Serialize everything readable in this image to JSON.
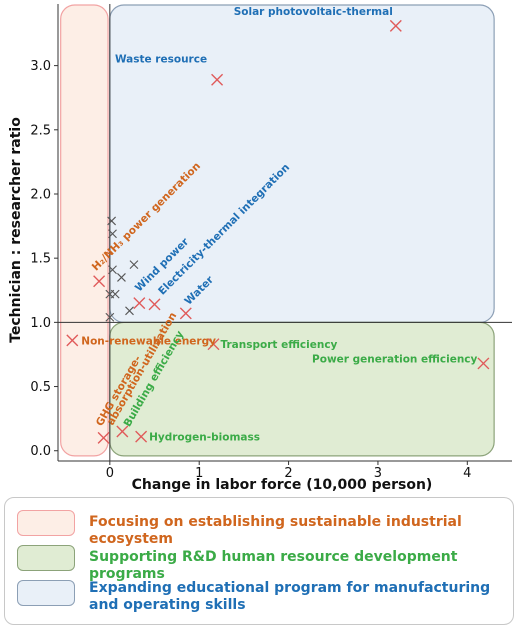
{
  "chart_data": {
    "type": "scatter",
    "title": "",
    "xlabel": "Change in labor force (10,000 person)",
    "ylabel": "Technician : researcher ratio",
    "xlim": [
      -0.58,
      4.5
    ],
    "ylim": [
      -0.08,
      3.48
    ],
    "xticks": [
      0,
      1,
      2,
      3,
      4
    ],
    "yticks": [
      0.0,
      0.5,
      1.0,
      1.5,
      2.0,
      2.5,
      3.0
    ],
    "xtick_labels": [
      "0",
      "1",
      "2",
      "3",
      "4"
    ],
    "ytick_labels": [
      "0.0",
      "0.5",
      "1.0",
      "1.5",
      "2.0",
      "2.5",
      "3.0"
    ],
    "grid": false,
    "reference_lines": {
      "x": 0,
      "y": 1.0
    },
    "regions": [
      {
        "name": "orange",
        "x": [
          -0.55,
          -0.02
        ],
        "y": [
          -0.04,
          3.48
        ],
        "fill": "#fdeee6",
        "stroke": "#f2a3a3"
      },
      {
        "name": "blue",
        "x": [
          0.0,
          4.3
        ],
        "y": [
          1.0,
          3.48
        ],
        "fill": "#e9f0f8",
        "stroke": "#8c9fb5"
      },
      {
        "name": "green",
        "x": [
          0.0,
          4.3
        ],
        "y": [
          -0.04,
          1.0
        ],
        "fill": "#e0ecd3",
        "stroke": "#8ca37a"
      }
    ],
    "labeled_points": [
      {
        "label": "Solar photovoltaic-thermal",
        "x": 3.2,
        "y": 3.31,
        "color": "#1f6fb5",
        "rotate": 0,
        "dx": -3,
        "dy": -11,
        "anchor": "end"
      },
      {
        "label": "Waste resource",
        "x": 1.2,
        "y": 2.89,
        "color": "#1f6fb5",
        "rotate": 0,
        "dx": -10,
        "dy": -17,
        "anchor": "end"
      },
      {
        "label": "Wind power",
        "x": 0.33,
        "y": 1.15,
        "color": "#1f6fb5",
        "rotate": -45,
        "dx": 0,
        "dy": -11,
        "anchor": "start"
      },
      {
        "label": "Electricity-thermal integration",
        "x": 0.5,
        "y": 1.14,
        "color": "#1f6fb5",
        "rotate": -45,
        "dx": 8,
        "dy": -9,
        "anchor": "start"
      },
      {
        "label": "Water",
        "x": 0.85,
        "y": 1.07,
        "color": "#1f6fb5",
        "rotate": -45,
        "dx": 3,
        "dy": -8,
        "anchor": "start"
      },
      {
        "label": "Non-renewable energy",
        "x": -0.42,
        "y": 0.86,
        "color": "#d0661e",
        "rotate": 0,
        "dx": 9,
        "dy": 4,
        "anchor": "start"
      },
      {
        "label": "Transport efficiency",
        "x": 1.16,
        "y": 0.83,
        "color": "#3bab47",
        "rotate": 0,
        "dx": 7,
        "dy": 4,
        "anchor": "start"
      },
      {
        "label": "Power generation efficiency",
        "x": 4.18,
        "y": 0.68,
        "color": "#3bab47",
        "rotate": 0,
        "dx": -6,
        "dy": -1,
        "anchor": "end"
      },
      {
        "label": "Building efficiency",
        "x": 0.14,
        "y": 0.15,
        "color": "#3bab47",
        "rotate": -60,
        "dx": 7,
        "dy": -4,
        "anchor": "start"
      },
      {
        "label": "Hydrogen-biomass",
        "x": 0.35,
        "y": 0.11,
        "color": "#3bab47",
        "rotate": 0,
        "dx": 8,
        "dy": 4,
        "anchor": "start"
      },
      {
        "label": "H₂/NH₃ power generation",
        "x": -0.12,
        "y": 1.32,
        "color": "#d0661e",
        "rotate": -45,
        "dx": -3,
        "dy": -10,
        "anchor": "start"
      },
      {
        "label": "GHG storage-",
        "x": -0.07,
        "y": 0.1,
        "color": "#d0661e",
        "rotate": -60,
        "dx": -2,
        "dy": -11,
        "anchor": "start"
      },
      {
        "label": "absorption-utilization",
        "x": -0.07,
        "y": 0.1,
        "color": "#d0661e",
        "rotate": -60,
        "dx": 9,
        "dy": -12,
        "anchor": "start"
      }
    ],
    "red_points": [
      {
        "x": 3.2,
        "y": 3.31
      },
      {
        "x": 1.2,
        "y": 2.89
      },
      {
        "x": 0.33,
        "y": 1.15
      },
      {
        "x": 0.5,
        "y": 1.14
      },
      {
        "x": 0.85,
        "y": 1.07
      },
      {
        "x": -0.42,
        "y": 0.86
      },
      {
        "x": 1.16,
        "y": 0.83
      },
      {
        "x": 4.18,
        "y": 0.68
      },
      {
        "x": 0.14,
        "y": 0.15
      },
      {
        "x": 0.35,
        "y": 0.11
      },
      {
        "x": -0.12,
        "y": 1.32
      },
      {
        "x": -0.07,
        "y": 0.1
      }
    ],
    "gray_points": [
      {
        "x": 0.02,
        "y": 1.79
      },
      {
        "x": 0.03,
        "y": 1.69
      },
      {
        "x": 0.27,
        "y": 1.45
      },
      {
        "x": 0.03,
        "y": 1.41
      },
      {
        "x": 0.13,
        "y": 1.35
      },
      {
        "x": 0.0,
        "y": 1.22
      },
      {
        "x": 0.06,
        "y": 1.22
      },
      {
        "x": 0.22,
        "y": 1.09
      },
      {
        "x": 0.0,
        "y": 1.04
      }
    ]
  },
  "legend": [
    {
      "label": "Focusing on establishing sustainable industrial ecosystem",
      "color": "#d0661e",
      "fill": "#fdeee6",
      "stroke": "#f2a3a3"
    },
    {
      "label": "Supporting R&D human resource development programs",
      "color": "#3bab47",
      "fill": "#e0ecd3",
      "stroke": "#8ca37a"
    },
    {
      "label": "Expanding educational program for manufacturing and operating skills",
      "color": "#1f6fb5",
      "fill": "#e9f0f8",
      "stroke": "#8c9fb5"
    }
  ]
}
